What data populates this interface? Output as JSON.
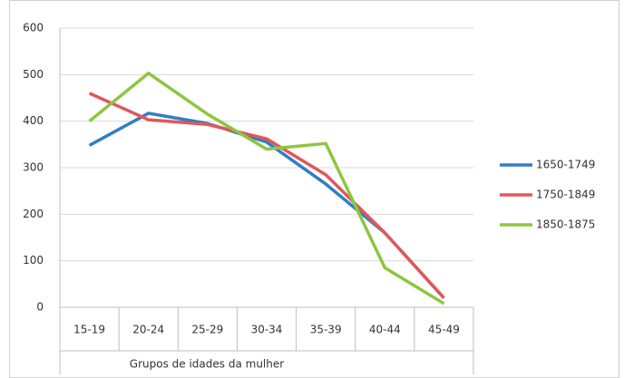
{
  "chart_data": {
    "type": "line",
    "x_label": "Grupos de idades da mulher",
    "categories": [
      "15-19",
      "20-24",
      "25-29",
      "30-34",
      "35-39",
      "40-44",
      "45-49"
    ],
    "series": [
      {
        "name": "1650-1749",
        "color": "#2f7ec5",
        "values": [
          348,
          417,
          395,
          355,
          265,
          160,
          20
        ]
      },
      {
        "name": "1750-1849",
        "color": "#e15759",
        "values": [
          460,
          403,
          393,
          362,
          285,
          160,
          20
        ]
      },
      {
        "name": "1850-1875",
        "color": "#8dc63f",
        "values": [
          400,
          503,
          415,
          340,
          352,
          85,
          8
        ]
      }
    ],
    "ylim": [
      0,
      600
    ],
    "yticks": [
      0,
      100,
      200,
      300,
      400,
      500,
      600
    ],
    "grid": true,
    "legend": "right"
  }
}
